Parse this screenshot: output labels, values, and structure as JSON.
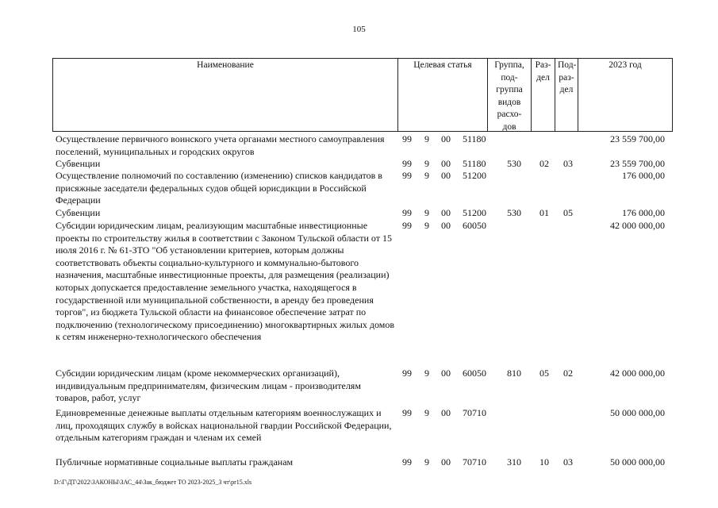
{
  "page_number": "105",
  "headers": {
    "name": "Наименование",
    "target": "Целевая статья",
    "group": "Группа, под-группа видов расхо-дов",
    "section": "Раз-дел",
    "subsection": "Под-раз-дел",
    "year": "2023 год"
  },
  "rows": [
    {
      "name": "Осуществление первичного воинского учета органами местного самоуправления поселений, муниципальных и городских округов",
      "p1": "99",
      "p2": "9",
      "p3": "00",
      "p4": "51180",
      "group": "",
      "section": "",
      "subsection": "",
      "amount": "23 559 700,00"
    },
    {
      "name": "Субвенции",
      "p1": "99",
      "p2": "9",
      "p3": "00",
      "p4": "51180",
      "group": "530",
      "section": "02",
      "subsection": "03",
      "amount": "23 559 700,00"
    },
    {
      "name": "Осуществление полномочий по составлению (изменению) списков кандидатов в присяжные заседатели федеральных судов общей юрисдикции в Российской Федерации",
      "p1": "99",
      "p2": "9",
      "p3": "00",
      "p4": "51200",
      "group": "",
      "section": "",
      "subsection": "",
      "amount": "176 000,00"
    },
    {
      "name": "Субвенции",
      "p1": "99",
      "p2": "9",
      "p3": "00",
      "p4": "51200",
      "group": "530",
      "section": "01",
      "subsection": "05",
      "amount": "176 000,00"
    },
    {
      "name": "Субсидии юридическим лицам, реализующим масштабные инвестиционные проекты по строительству жилья в соответствии с Законом Тульской области от 15 июля 2016 г. № 61-ЗТО \"Об установлении критериев, которым должны соответствовать объекты социально-культурного и коммунально-бытового назначения, масштабные инвестиционные проекты, для размещения (реализации) которых допускается предоставление земельного участка, находящегося в государственной или муниципальной собственности, в аренду без проведения торгов\", из бюджета Тульской области на финансовое обеспечение затрат по подключению (технологическому присоединению) многоквартирных жилых домов к сетям инженерно-технологического обеспечения",
      "p1": "99",
      "p2": "9",
      "p3": "00",
      "p4": "60050",
      "group": "",
      "section": "",
      "subsection": "",
      "amount": "42 000 000,00"
    },
    {
      "name": "Субсидии юридическим лицам (кроме некоммерческих организаций), индивидуальным предпринимателям, физическим лицам - производителям товаров, работ, услуг",
      "p1": "99",
      "p2": "9",
      "p3": "00",
      "p4": "60050",
      "group": "810",
      "section": "05",
      "subsection": "02",
      "amount": "42 000 000,00"
    },
    {
      "name": "Единовременные денежные выплаты отдельным категориям военнослужащих и лиц, проходящих службу в войсках национальной гвардии Российской Федерации, отдельным категориям граждан и членам их семей",
      "p1": "99",
      "p2": "9",
      "p3": "00",
      "p4": "70710",
      "group": "",
      "section": "",
      "subsection": "",
      "amount": "50 000 000,00"
    },
    {
      "name": "Публичные нормативные социальные выплаты гражданам",
      "p1": "99",
      "p2": "9",
      "p3": "00",
      "p4": "70710",
      "group": "310",
      "section": "10",
      "subsection": "03",
      "amount": "50 000 000,00"
    }
  ],
  "footer_path": "D:\\Г\\ДТ\\2022\\ЗАКОНЫ\\ЗАС_44\\Зак_бюджет ТО 2023-2025_3 чт\\pr15.xls"
}
